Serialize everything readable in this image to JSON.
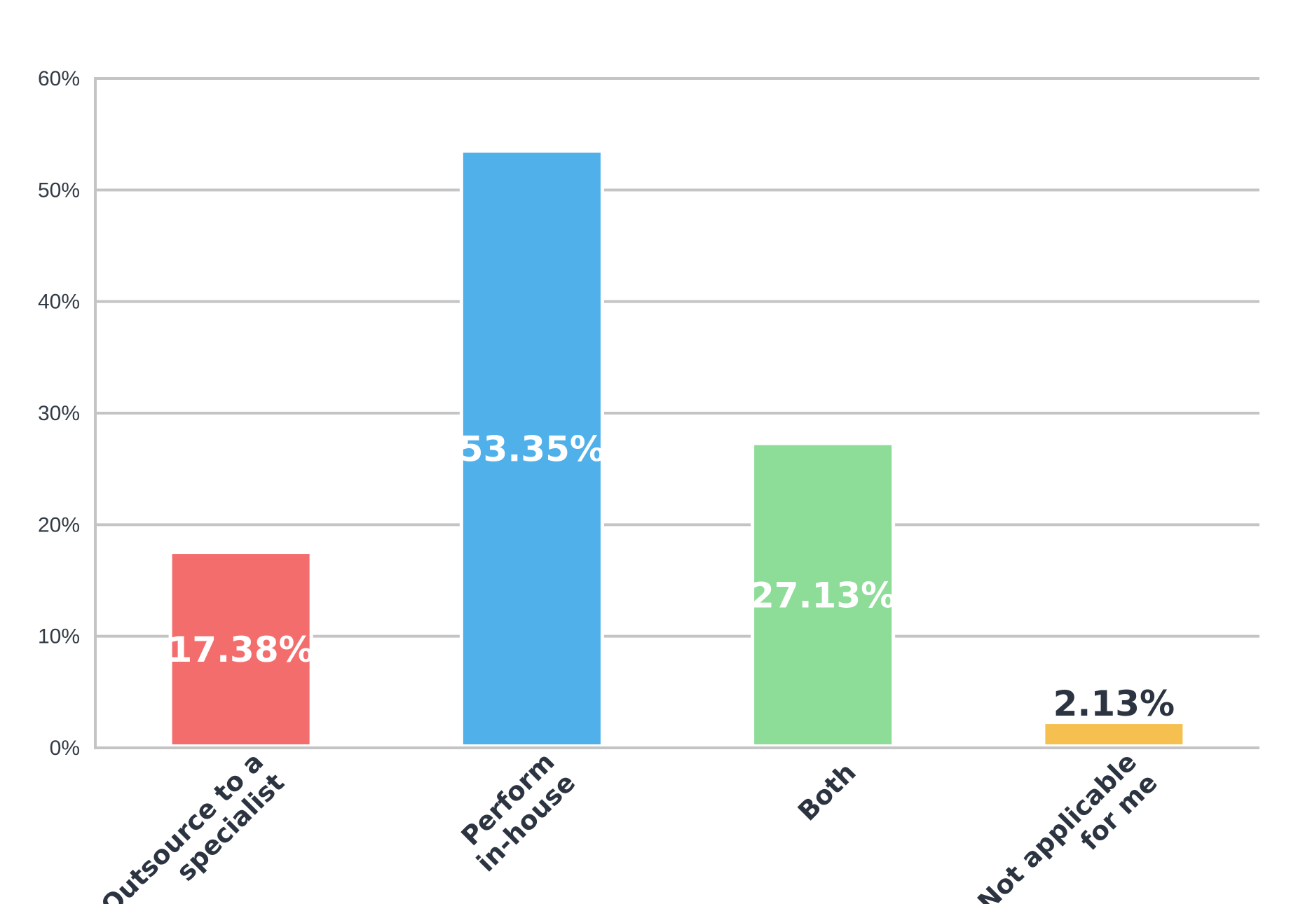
{
  "chart_data": {
    "type": "bar",
    "categories": [
      [
        "Outsource to a",
        "specialist"
      ],
      [
        "Perform",
        "in-house"
      ],
      [
        "Both"
      ],
      [
        "Not applicable",
        "for me"
      ]
    ],
    "values": [
      17.38,
      53.35,
      27.13,
      2.13
    ],
    "data_labels": [
      "17.38%",
      "53.35%",
      "27.13%",
      "2.13%"
    ],
    "colors": [
      "#f46d6d",
      "#4fb0ea",
      "#8ddc98",
      "#f5c04f"
    ],
    "data_label_colors": [
      "#ffffff",
      "#ffffff",
      "#ffffff",
      "#2b3440"
    ],
    "ylim": [
      0,
      60
    ],
    "yticks": [
      0,
      10,
      20,
      30,
      40,
      50,
      60
    ],
    "ytick_labels": [
      "0%",
      "10%",
      "20%",
      "30%",
      "40%",
      "50%",
      "60%"
    ],
    "grid": true,
    "title": "",
    "xlabel": "",
    "ylabel": ""
  }
}
